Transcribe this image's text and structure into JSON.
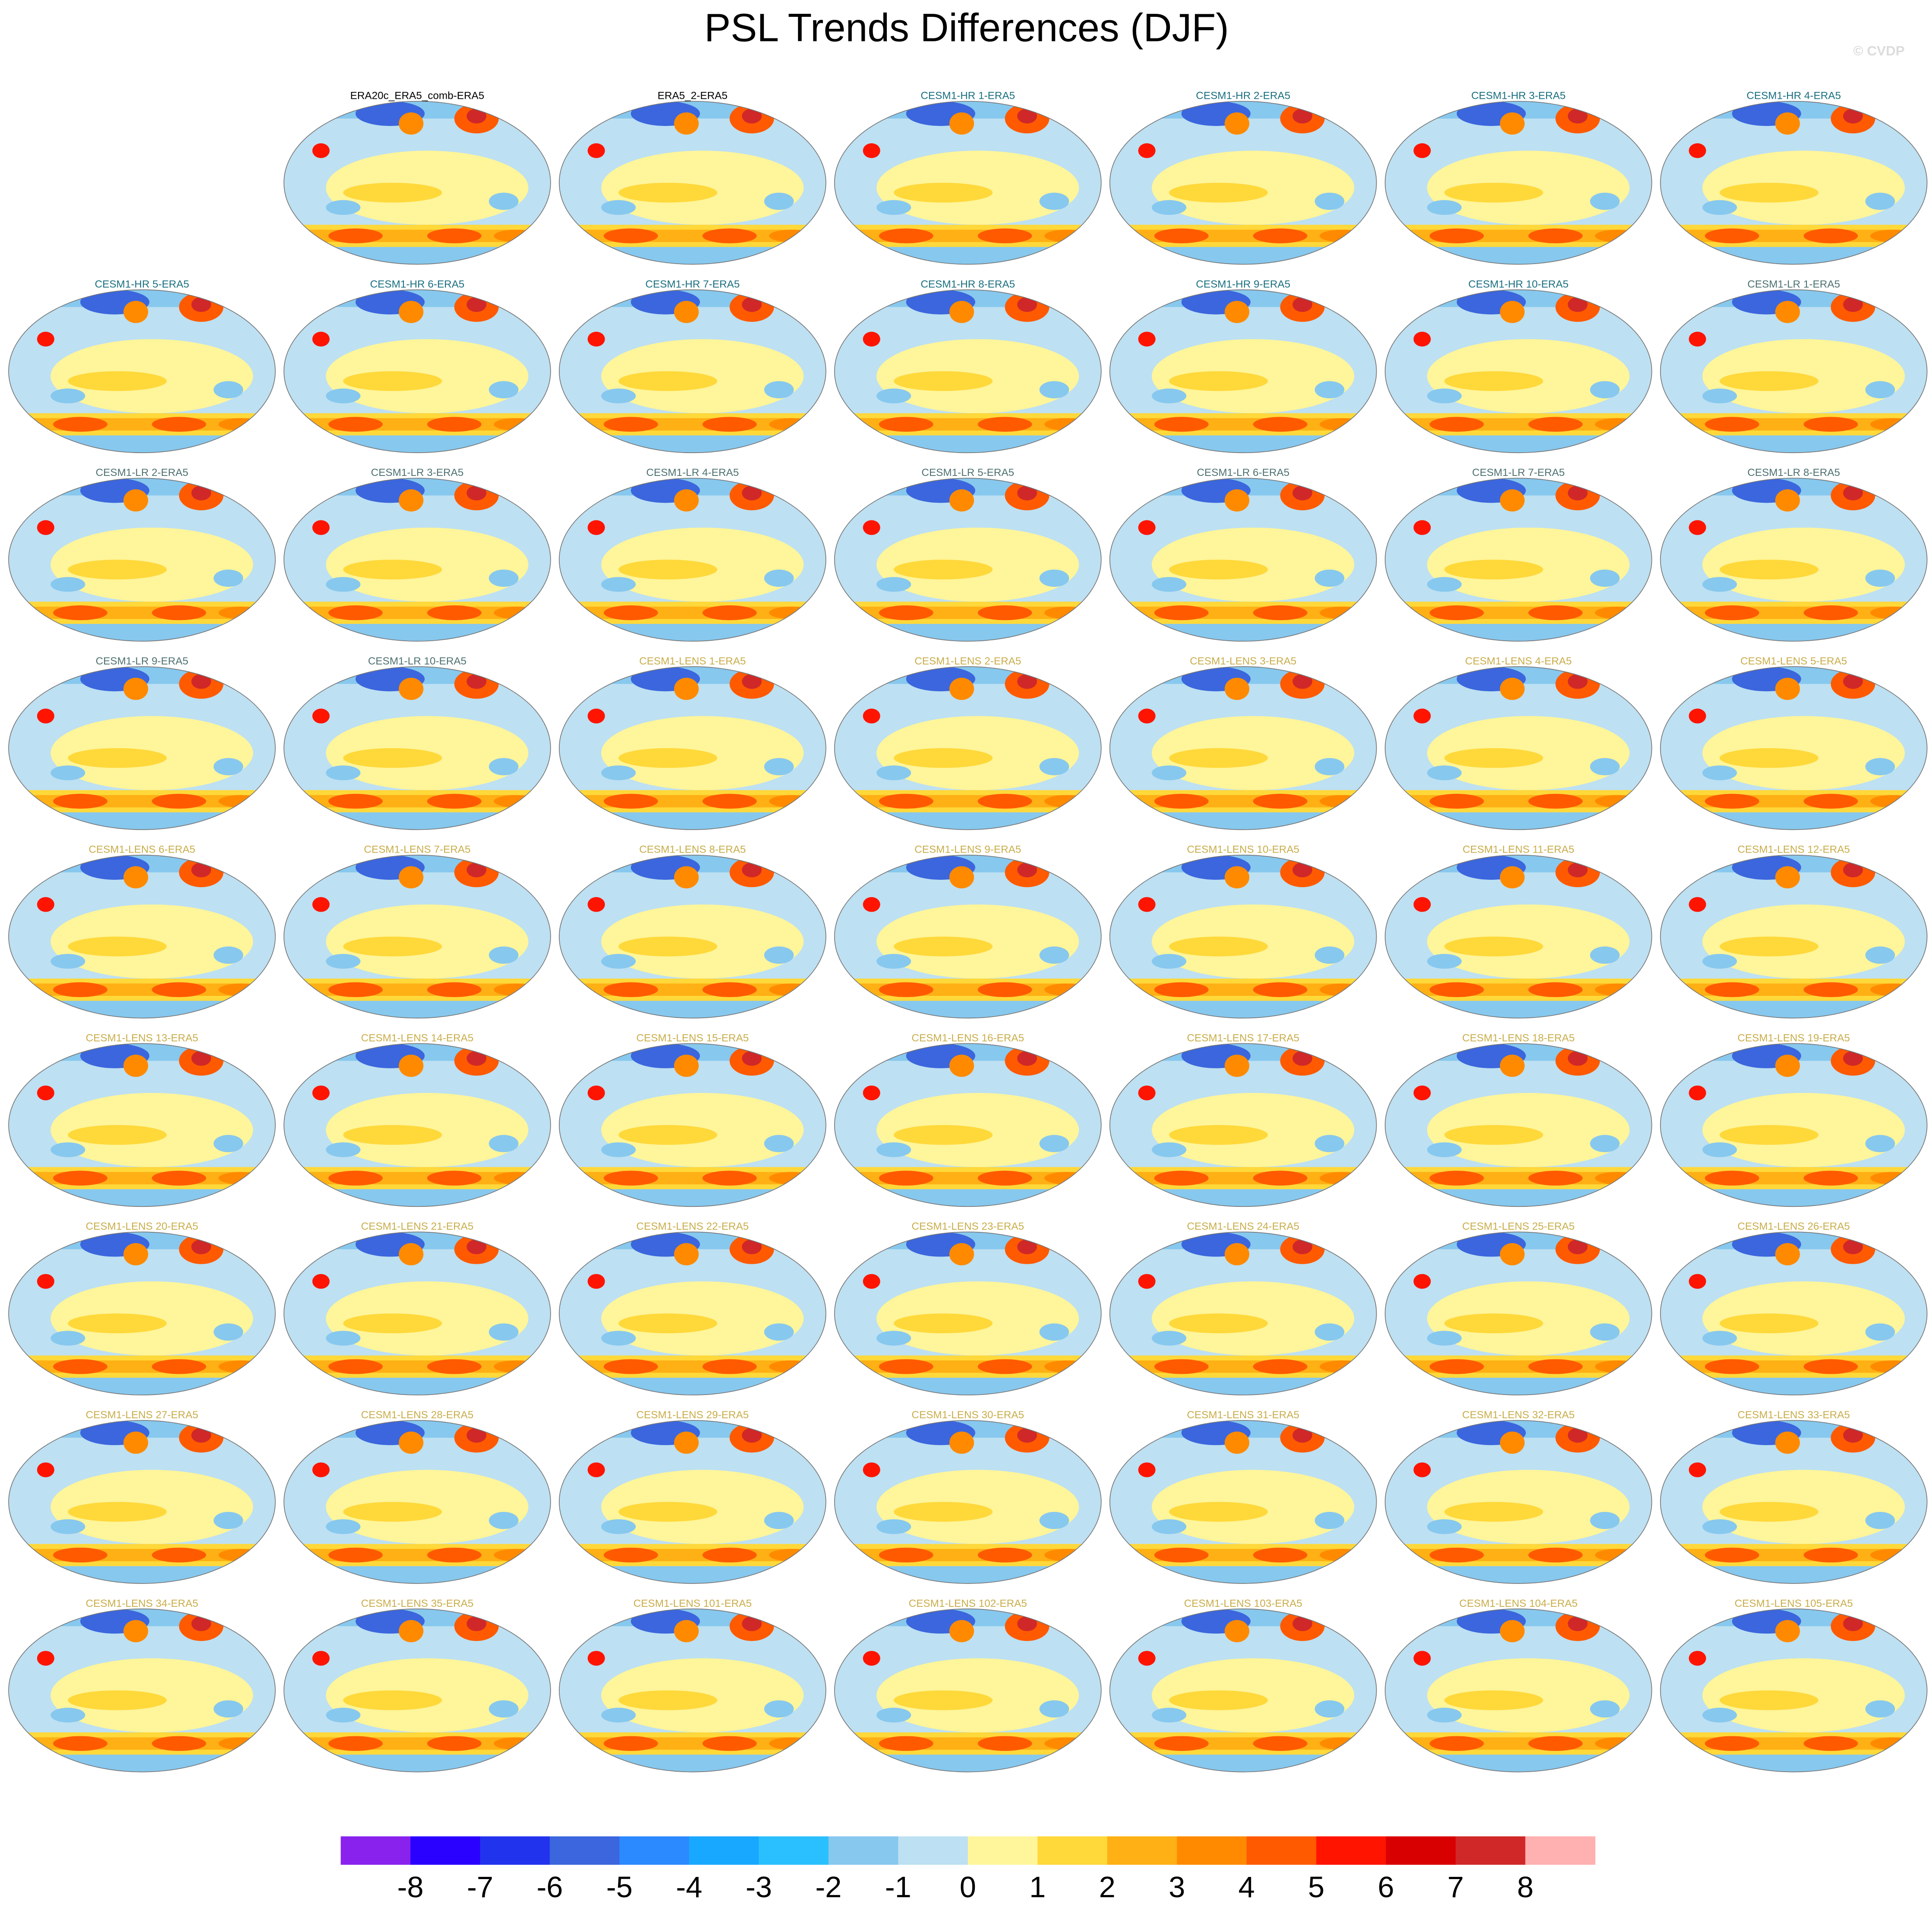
{
  "chart_data": {
    "type": "map-panels",
    "title": "PSL Trends Differences (DJF)",
    "watermark": "© CVDP",
    "panels": [
      {
        "title": "ERA20c_ERA5_comb-ERA5",
        "color": "#000000"
      },
      {
        "title": "ERA5_2-ERA5",
        "color": "#000000"
      },
      {
        "title": "CESM1-HR 1-ERA5",
        "color": "#1a6f80"
      },
      {
        "title": "CESM1-HR 2-ERA5",
        "color": "#1a6f80"
      },
      {
        "title": "CESM1-HR 3-ERA5",
        "color": "#1a6f80"
      },
      {
        "title": "CESM1-HR 4-ERA5",
        "color": "#1a6f80"
      },
      {
        "title": "CESM1-HR 5-ERA5",
        "color": "#1a6f80"
      },
      {
        "title": "CESM1-HR 6-ERA5",
        "color": "#1a6f80"
      },
      {
        "title": "CESM1-HR 7-ERA5",
        "color": "#1a6f80"
      },
      {
        "title": "CESM1-HR 8-ERA5",
        "color": "#1a6f80"
      },
      {
        "title": "CESM1-HR 9-ERA5",
        "color": "#1a6f80"
      },
      {
        "title": "CESM1-HR 10-ERA5",
        "color": "#1a6f80"
      },
      {
        "title": "CESM1-LR 1-ERA5",
        "color": "#4d7070"
      },
      {
        "title": "CESM1-LR 2-ERA5",
        "color": "#4d7070"
      },
      {
        "title": "CESM1-LR 3-ERA5",
        "color": "#4d7070"
      },
      {
        "title": "CESM1-LR 4-ERA5",
        "color": "#4d7070"
      },
      {
        "title": "CESM1-LR 5-ERA5",
        "color": "#4d7070"
      },
      {
        "title": "CESM1-LR 6-ERA5",
        "color": "#4d7070"
      },
      {
        "title": "CESM1-LR 7-ERA5",
        "color": "#4d7070"
      },
      {
        "title": "CESM1-LR 8-ERA5",
        "color": "#4d7070"
      },
      {
        "title": "CESM1-LR 9-ERA5",
        "color": "#4d7070"
      },
      {
        "title": "CESM1-LR 10-ERA5",
        "color": "#4d7070"
      },
      {
        "title": "CESM1-LENS 1-ERA5",
        "color": "#c9ad4a"
      },
      {
        "title": "CESM1-LENS 2-ERA5",
        "color": "#c9ad4a"
      },
      {
        "title": "CESM1-LENS 3-ERA5",
        "color": "#c9ad4a"
      },
      {
        "title": "CESM1-LENS 4-ERA5",
        "color": "#c9ad4a"
      },
      {
        "title": "CESM1-LENS 5-ERA5",
        "color": "#c9ad4a"
      },
      {
        "title": "CESM1-LENS 6-ERA5",
        "color": "#c9ad4a"
      },
      {
        "title": "CESM1-LENS 7-ERA5",
        "color": "#c9ad4a"
      },
      {
        "title": "CESM1-LENS 8-ERA5",
        "color": "#c9ad4a"
      },
      {
        "title": "CESM1-LENS 9-ERA5",
        "color": "#c9ad4a"
      },
      {
        "title": "CESM1-LENS 10-ERA5",
        "color": "#c9ad4a"
      },
      {
        "title": "CESM1-LENS 11-ERA5",
        "color": "#c9ad4a"
      },
      {
        "title": "CESM1-LENS 12-ERA5",
        "color": "#c9ad4a"
      },
      {
        "title": "CESM1-LENS 13-ERA5",
        "color": "#c9ad4a"
      },
      {
        "title": "CESM1-LENS 14-ERA5",
        "color": "#c9ad4a"
      },
      {
        "title": "CESM1-LENS 15-ERA5",
        "color": "#c9ad4a"
      },
      {
        "title": "CESM1-LENS 16-ERA5",
        "color": "#c9ad4a"
      },
      {
        "title": "CESM1-LENS 17-ERA5",
        "color": "#c9ad4a"
      },
      {
        "title": "CESM1-LENS 18-ERA5",
        "color": "#c9ad4a"
      },
      {
        "title": "CESM1-LENS 19-ERA5",
        "color": "#c9ad4a"
      },
      {
        "title": "CESM1-LENS 20-ERA5",
        "color": "#c9ad4a"
      },
      {
        "title": "CESM1-LENS 21-ERA5",
        "color": "#c9ad4a"
      },
      {
        "title": "CESM1-LENS 22-ERA5",
        "color": "#c9ad4a"
      },
      {
        "title": "CESM1-LENS 23-ERA5",
        "color": "#c9ad4a"
      },
      {
        "title": "CESM1-LENS 24-ERA5",
        "color": "#c9ad4a"
      },
      {
        "title": "CESM1-LENS 25-ERA5",
        "color": "#c9ad4a"
      },
      {
        "title": "CESM1-LENS 26-ERA5",
        "color": "#c9ad4a"
      },
      {
        "title": "CESM1-LENS 27-ERA5",
        "color": "#c9ad4a"
      },
      {
        "title": "CESM1-LENS 28-ERA5",
        "color": "#c9ad4a"
      },
      {
        "title": "CESM1-LENS 29-ERA5",
        "color": "#c9ad4a"
      },
      {
        "title": "CESM1-LENS 30-ERA5",
        "color": "#c9ad4a"
      },
      {
        "title": "CESM1-LENS 31-ERA5",
        "color": "#c9ad4a"
      },
      {
        "title": "CESM1-LENS 32-ERA5",
        "color": "#c9ad4a"
      },
      {
        "title": "CESM1-LENS 33-ERA5",
        "color": "#c9ad4a"
      },
      {
        "title": "CESM1-LENS 34-ERA5",
        "color": "#c9ad4a"
      },
      {
        "title": "CESM1-LENS 35-ERA5",
        "color": "#c9ad4a"
      },
      {
        "title": "CESM1-LENS 101-ERA5",
        "color": "#c9ad4a"
      },
      {
        "title": "CESM1-LENS 102-ERA5",
        "color": "#c9ad4a"
      },
      {
        "title": "CESM1-LENS 103-ERA5",
        "color": "#c9ad4a"
      },
      {
        "title": "CESM1-LENS 104-ERA5",
        "color": "#c9ad4a"
      },
      {
        "title": "CESM1-LENS 105-ERA5",
        "color": "#c9ad4a"
      }
    ],
    "colorbar": {
      "colors": [
        "#8a22ee",
        "#2a00ff",
        "#2233ee",
        "#3b66dd",
        "#2b8aff",
        "#18a8ff",
        "#2ac0ff",
        "#87c8ee",
        "#bde0f2",
        "#fff59a",
        "#ffd83a",
        "#ffb014",
        "#ff8a00",
        "#ff5a00",
        "#ff1400",
        "#d80000",
        "#d02828",
        "#ffb0b0"
      ],
      "ticks": [
        -8,
        -7,
        -6,
        -5,
        -4,
        -3,
        -2,
        -1,
        0,
        1,
        2,
        3,
        4,
        5,
        6,
        7,
        8
      ]
    }
  }
}
